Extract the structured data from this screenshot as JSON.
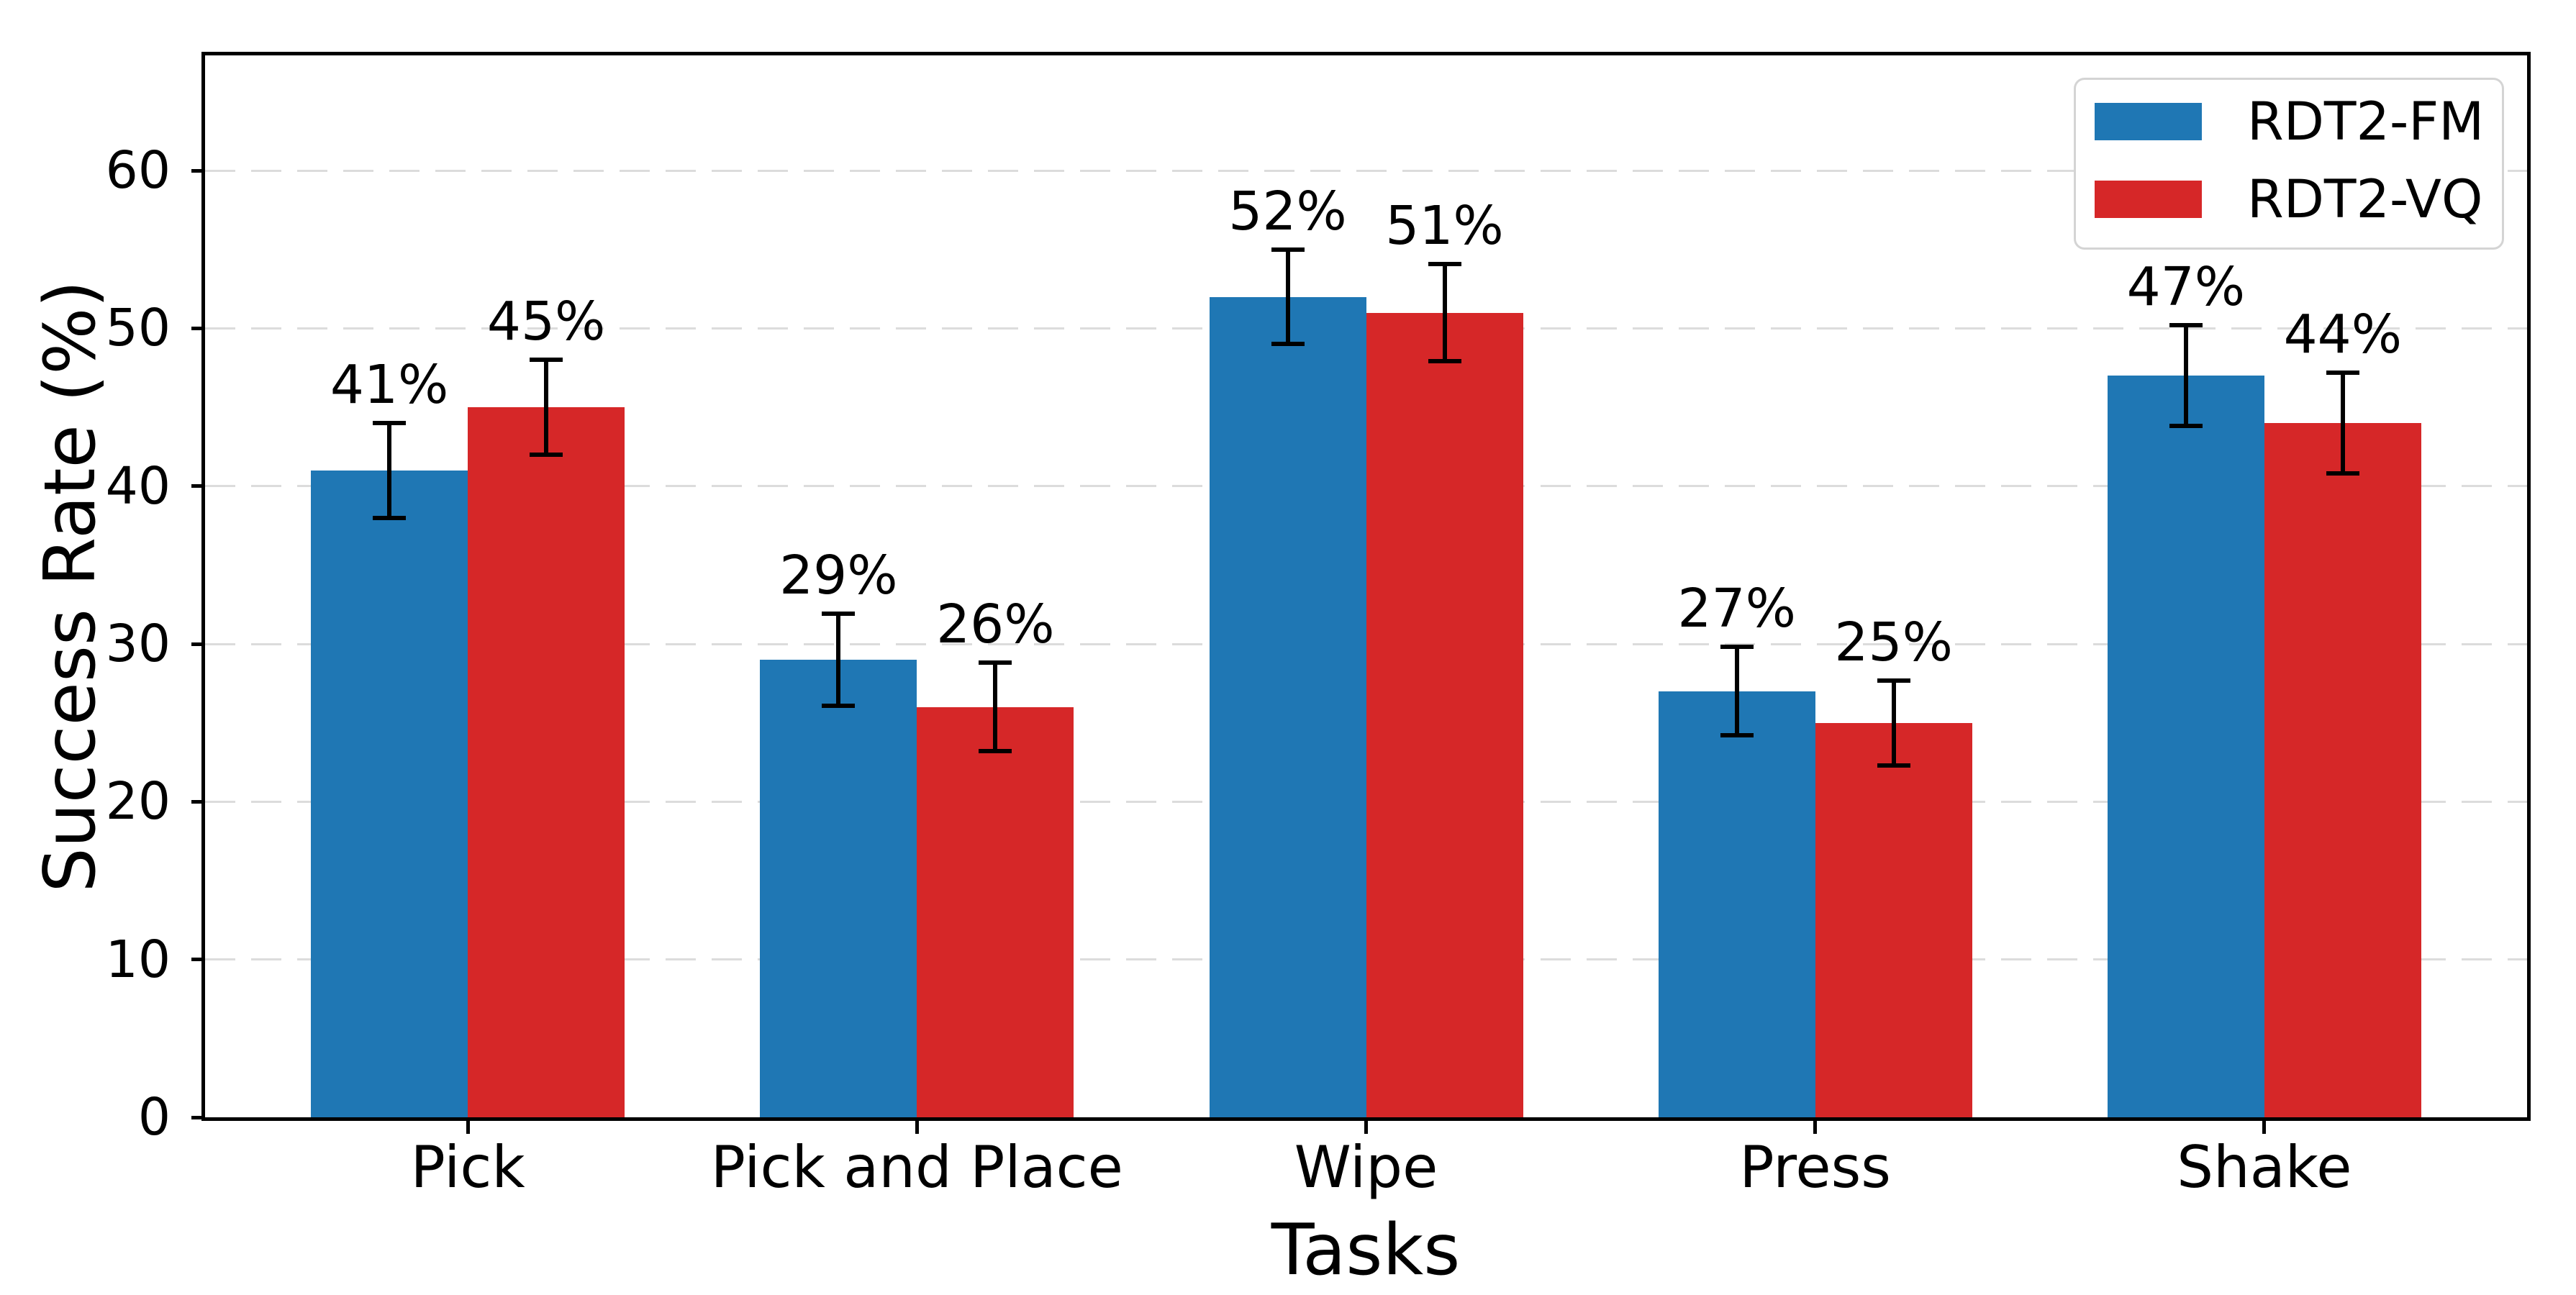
{
  "figure": {
    "background": "#ffffff",
    "text_color": "#000000",
    "grid_color": "#dcdcdc",
    "errorbar_color": "#000000"
  },
  "chart_data": {
    "type": "bar",
    "title": "",
    "xlabel": "Tasks",
    "ylabel": "Success Rate (%)",
    "categories": [
      "Pick",
      "Pick and Place",
      "Wipe",
      "Press",
      "Shake"
    ],
    "series": [
      {
        "name": "RDT2-FM",
        "color": "#1f77b4",
        "values": [
          41,
          29,
          52,
          27,
          47
        ],
        "errors": [
          3,
          2.9,
          3,
          2.8,
          3.2
        ],
        "value_labels": [
          "41%",
          "29%",
          "52%",
          "27%",
          "47%"
        ]
      },
      {
        "name": "RDT2-VQ",
        "color": "#d62728",
        "values": [
          45,
          26,
          51,
          25,
          44
        ],
        "errors": [
          3,
          2.8,
          3.1,
          2.7,
          3.2
        ],
        "value_labels": [
          "45%",
          "26%",
          "51%",
          "25%",
          "44%"
        ]
      }
    ],
    "ylim": [
      0,
      67.3
    ],
    "yticks": [
      0,
      10,
      20,
      30,
      40,
      50,
      60
    ],
    "grid": "horizontal-dashed",
    "legend_position": "upper-right",
    "legend_entries": [
      "RDT2-FM",
      "RDT2-VQ"
    ]
  }
}
